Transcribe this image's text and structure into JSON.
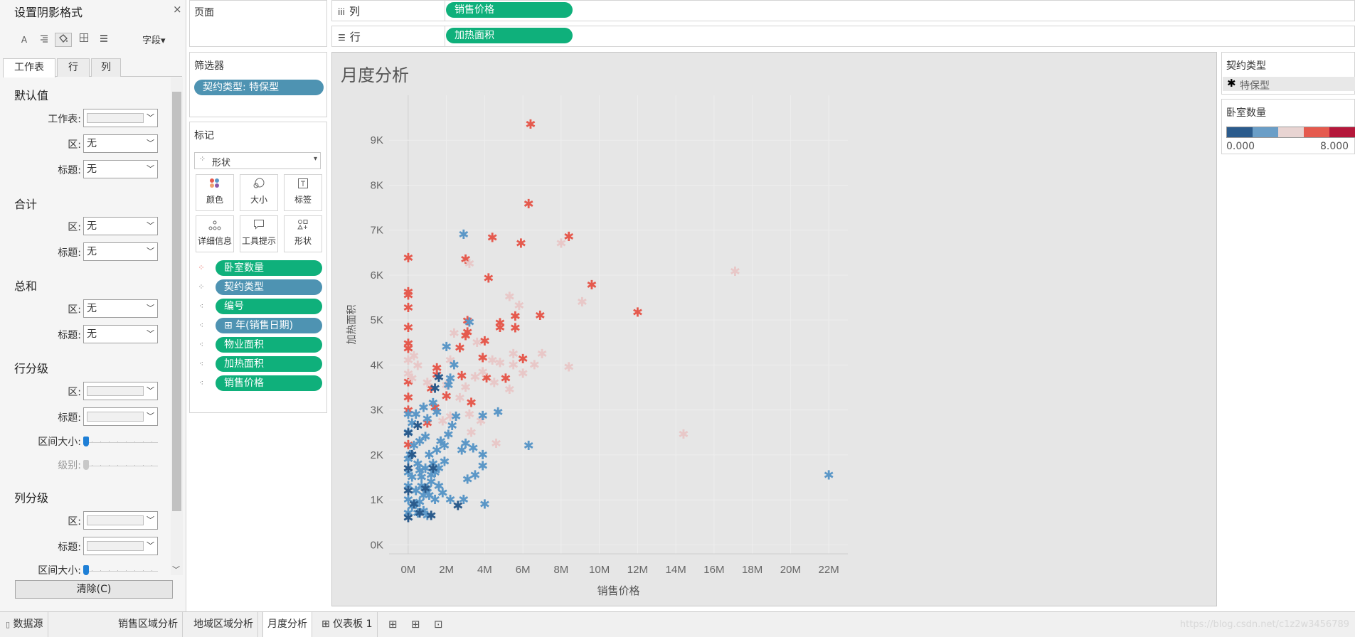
{
  "format_panel": {
    "title": "设置阴影格式",
    "close": "×",
    "toolbar": {
      "icons": [
        "font-icon",
        "align-icon",
        "shading-icon",
        "borders-icon",
        "lines-icon"
      ],
      "font_glyph": "A",
      "fields_label": "字段▾"
    },
    "tabs": [
      "工作表",
      "行",
      "列"
    ],
    "sections": {
      "default": {
        "title": "默认值",
        "worksheet_label": "工作表:",
        "pane_label": "区:",
        "pane_value": "无",
        "header_label": "标题:",
        "header_value": "无"
      },
      "totals": {
        "title": "合计",
        "pane_label": "区:",
        "pane_value": "无",
        "header_label": "标题:",
        "header_value": "无"
      },
      "grand_totals": {
        "title": "总和",
        "pane_label": "区:",
        "pane_value": "无",
        "header_label": "标题:",
        "header_value": "无"
      },
      "row_banding": {
        "title": "行分级",
        "pane_label": "区:",
        "header_label": "标题:",
        "band_size_label": "区间大小:",
        "level_label": "级别:"
      },
      "col_banding": {
        "title": "列分级",
        "pane_label": "区:",
        "header_label": "标题:",
        "band_size_label": "区间大小:"
      }
    },
    "clear_button": "清除(C)"
  },
  "pages_card": {
    "title": "页面"
  },
  "filters_card": {
    "title": "筛选器",
    "pill": "契约类型: 特保型"
  },
  "marks_card": {
    "title": "标记",
    "mark_type": "形状",
    "buttons": [
      {
        "label": "颜色",
        "icon": "color-icon"
      },
      {
        "label": "大小",
        "icon": "size-icon"
      },
      {
        "label": "标签",
        "icon": "label-icon"
      },
      {
        "label": "详细信息",
        "icon": "detail-icon"
      },
      {
        "label": "工具提示",
        "icon": "tooltip-icon"
      },
      {
        "label": "形状",
        "icon": "shape-icon"
      }
    ],
    "fields": [
      {
        "label": "卧室数量",
        "kind": "color"
      },
      {
        "label": "契约类型",
        "kind": "shape"
      },
      {
        "label": "编号",
        "kind": "detail"
      },
      {
        "label": "⊞ 年(销售日期)",
        "kind": "detail"
      },
      {
        "label": "物业面积",
        "kind": "detail"
      },
      {
        "label": "加热面积",
        "kind": "detail"
      },
      {
        "label": "销售价格",
        "kind": "detail"
      }
    ]
  },
  "shelves": {
    "columns_label": "列",
    "columns_icon": "iii",
    "columns_pill": "销售价格",
    "rows_label": "行",
    "rows_icon": "☰",
    "rows_pill": "加热面积"
  },
  "view": {
    "title": "月度分析"
  },
  "legends": {
    "shape_title": "契约类型",
    "shape_item": "特保型",
    "shape_glyph": "✱",
    "color_title": "卧室数量",
    "color_min": "0.000",
    "color_max": "8.000",
    "color_ramp": [
      "#2b5b8c",
      "#6a9ec7",
      "#e8d4d2",
      "#e55a4e",
      "#b5183b"
    ]
  },
  "bottom_tabs": {
    "datasource": "数据源",
    "sheets": [
      "销售区域分析",
      "地域区域分析",
      "月度分析",
      "⊞ 仪表板 1"
    ],
    "active_sheet": "月度分析",
    "watermark": "https://blog.csdn.net/c1z2w3456789"
  },
  "chart_data": {
    "type": "scatter",
    "title": "月度分析",
    "xlabel": "销售价格",
    "ylabel": "加热面积",
    "xlim": [
      -1000000,
      23000000
    ],
    "ylim": [
      -200,
      10000
    ],
    "x_ticks": [
      "0M",
      "2M",
      "4M",
      "6M",
      "8M",
      "10M",
      "12M",
      "14M",
      "16M",
      "18M",
      "20M",
      "22M"
    ],
    "y_ticks": [
      "0K",
      "1K",
      "2K",
      "3K",
      "4K",
      "5K",
      "6K",
      "7K",
      "8K",
      "9K"
    ],
    "marker": "✱",
    "series": [
      {
        "bedrooms": "high",
        "color": "#e55a4e",
        "points": [
          [
            6.4,
            9350
          ],
          [
            6.3,
            7580
          ],
          [
            8.4,
            6850
          ],
          [
            4.4,
            6830
          ],
          [
            5.9,
            6700
          ],
          [
            3.0,
            6350
          ],
          [
            0.0,
            6380
          ],
          [
            4.2,
            5930
          ],
          [
            9.6,
            5780
          ],
          [
            0.0,
            5620
          ],
          [
            0.0,
            5550
          ],
          [
            0.0,
            5270
          ],
          [
            12.0,
            5170
          ],
          [
            6.9,
            5100
          ],
          [
            5.6,
            5080
          ],
          [
            3.1,
            4980
          ],
          [
            4.8,
            4930
          ],
          [
            4.8,
            4830
          ],
          [
            5.6,
            4820
          ],
          [
            3.1,
            4730
          ],
          [
            0.0,
            4830
          ],
          [
            3.0,
            4650
          ],
          [
            0.0,
            4470
          ],
          [
            4.0,
            4530
          ],
          [
            2.7,
            4380
          ],
          [
            6.0,
            4130
          ],
          [
            3.9,
            4160
          ],
          [
            0.0,
            4360
          ],
          [
            1.5,
            3930
          ],
          [
            0.0,
            3620
          ],
          [
            0.0,
            3270
          ],
          [
            1.2,
            3470
          ],
          [
            2.0,
            3300
          ],
          [
            3.3,
            3160
          ],
          [
            4.1,
            3710
          ],
          [
            5.1,
            3700
          ],
          [
            2.8,
            3750
          ],
          [
            1.4,
            3050
          ],
          [
            0.0,
            2990
          ],
          [
            1.0,
            2700
          ],
          [
            0.0,
            2220
          ],
          [
            1.5,
            3780
          ]
        ]
      },
      {
        "bedrooms": "mid",
        "color": "#e8c8c8",
        "points": [
          [
            17.1,
            6080
          ],
          [
            9.1,
            5400
          ],
          [
            8.0,
            6700
          ],
          [
            3.2,
            6250
          ],
          [
            5.8,
            5320
          ],
          [
            5.3,
            5520
          ],
          [
            7.0,
            4240
          ],
          [
            6.6,
            4000
          ],
          [
            8.4,
            3950
          ],
          [
            6.0,
            3810
          ],
          [
            4.8,
            4050
          ],
          [
            5.5,
            4240
          ],
          [
            4.5,
            3600
          ],
          [
            5.3,
            3450
          ],
          [
            3.9,
            3840
          ],
          [
            3.5,
            3730
          ],
          [
            3.0,
            3500
          ],
          [
            2.7,
            3260
          ],
          [
            2.0,
            3550
          ],
          [
            3.2,
            2900
          ],
          [
            3.8,
            2750
          ],
          [
            3.3,
            2500
          ],
          [
            2.2,
            2850
          ],
          [
            4.6,
            2250
          ],
          [
            14.4,
            2460
          ],
          [
            0.3,
            4200
          ],
          [
            0.5,
            3980
          ],
          [
            0.0,
            4100
          ],
          [
            0.2,
            3700
          ],
          [
            0.0,
            3800
          ],
          [
            2.2,
            4100
          ],
          [
            3.6,
            4500
          ],
          [
            2.4,
            4700
          ],
          [
            4.4,
            4100
          ],
          [
            5.5,
            4000
          ],
          [
            1.8,
            2750
          ],
          [
            1.0,
            3600
          ]
        ]
      },
      {
        "bedrooms": "low",
        "color": "#5b97c7",
        "points": [
          [
            2.9,
            6900
          ],
          [
            22.0,
            1550
          ],
          [
            6.3,
            2200
          ],
          [
            4.7,
            2950
          ],
          [
            3.9,
            2870
          ],
          [
            2.5,
            2850
          ],
          [
            2.3,
            2650
          ],
          [
            2.1,
            2450
          ],
          [
            1.9,
            2200
          ],
          [
            3.0,
            2250
          ],
          [
            2.8,
            2100
          ],
          [
            3.4,
            2150
          ],
          [
            3.9,
            2000
          ],
          [
            3.9,
            1750
          ],
          [
            3.5,
            1550
          ],
          [
            3.1,
            1450
          ],
          [
            2.9,
            1000
          ],
          [
            4.0,
            900
          ],
          [
            1.9,
            1850
          ],
          [
            1.6,
            1700
          ],
          [
            1.4,
            1600
          ],
          [
            1.2,
            1400
          ],
          [
            1.0,
            1250
          ],
          [
            0.8,
            1100
          ],
          [
            0.6,
            950
          ],
          [
            0.4,
            900
          ],
          [
            0.2,
            850
          ],
          [
            0.0,
            700
          ],
          [
            0.0,
            1000
          ],
          [
            0.0,
            1300
          ],
          [
            0.0,
            1600
          ],
          [
            0.0,
            1900
          ],
          [
            0.2,
            1500
          ],
          [
            0.5,
            1800
          ],
          [
            0.7,
            1500
          ],
          [
            0.9,
            1700
          ],
          [
            1.1,
            2000
          ],
          [
            1.3,
            1800
          ],
          [
            1.5,
            2100
          ],
          [
            1.7,
            2300
          ],
          [
            0.3,
            2200
          ],
          [
            0.6,
            2300
          ],
          [
            0.9,
            2400
          ],
          [
            0.4,
            1200
          ],
          [
            0.7,
            1300
          ],
          [
            1.1,
            1100
          ],
          [
            1.4,
            1000
          ],
          [
            0.1,
            2000
          ],
          [
            0.0,
            2500
          ],
          [
            0.0,
            2900
          ],
          [
            0.2,
            2700
          ],
          [
            0.4,
            2900
          ],
          [
            0.8,
            3050
          ],
          [
            1.0,
            2800
          ],
          [
            1.3,
            3150
          ],
          [
            1.5,
            2950
          ],
          [
            2.1,
            3550
          ],
          [
            2.2,
            3700
          ],
          [
            2.4,
            4000
          ],
          [
            2.0,
            4400
          ],
          [
            3.2,
            4950
          ],
          [
            0.6,
            1650
          ],
          [
            1.2,
            1550
          ],
          [
            1.6,
            1300
          ],
          [
            1.8,
            1150
          ],
          [
            2.2,
            1000
          ],
          [
            0.5,
            700
          ],
          [
            0.8,
            750
          ],
          [
            1.0,
            650
          ]
        ]
      },
      {
        "bedrooms": "lowest",
        "color": "#2b5b8c",
        "points": [
          [
            1.6,
            3720
          ],
          [
            1.4,
            3480
          ],
          [
            0.0,
            2480
          ],
          [
            0.2,
            2000
          ],
          [
            0.5,
            2650
          ],
          [
            0.0,
            1700
          ],
          [
            0.0,
            1200
          ],
          [
            0.3,
            900
          ],
          [
            0.0,
            600
          ],
          [
            0.6,
            700
          ],
          [
            1.2,
            650
          ],
          [
            2.6,
            870
          ],
          [
            0.9,
            1250
          ],
          [
            1.3,
            1700
          ]
        ]
      }
    ]
  }
}
